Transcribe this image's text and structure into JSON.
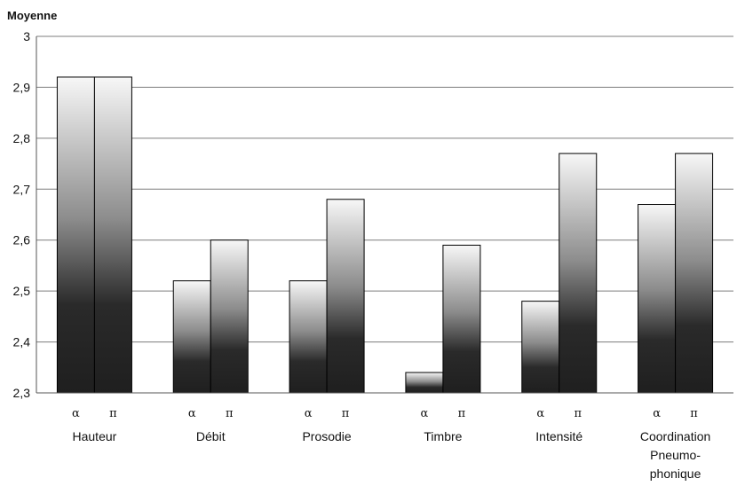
{
  "chart_data": {
    "type": "bar",
    "title": "Moyenne",
    "xlabel": "",
    "ylabel": "",
    "ylim": [
      2.3,
      3.0
    ],
    "y_ticks": [
      "2,3",
      "2,4",
      "2,5",
      "2,6",
      "2,7",
      "2,8",
      "2,9",
      "3"
    ],
    "y_tick_values": [
      2.3,
      2.4,
      2.5,
      2.6,
      2.7,
      2.8,
      2.9,
      3.0
    ],
    "grid": true,
    "categories": [
      {
        "name_lines": [
          "Hauteur"
        ],
        "bars": [
          {
            "symbol": "α",
            "value": 2.92
          },
          {
            "symbol": "π",
            "value": 2.92
          }
        ]
      },
      {
        "name_lines": [
          "Débit"
        ],
        "bars": [
          {
            "symbol": "α",
            "value": 2.52
          },
          {
            "symbol": "π",
            "value": 2.6
          }
        ]
      },
      {
        "name_lines": [
          "Prosodie"
        ],
        "bars": [
          {
            "symbol": "α",
            "value": 2.52
          },
          {
            "symbol": "π",
            "value": 2.68
          }
        ]
      },
      {
        "name_lines": [
          "Timbre"
        ],
        "bars": [
          {
            "symbol": "α",
            "value": 2.34
          },
          {
            "symbol": "π",
            "value": 2.59
          }
        ]
      },
      {
        "name_lines": [
          "Intensité"
        ],
        "bars": [
          {
            "symbol": "α",
            "value": 2.48
          },
          {
            "symbol": "π",
            "value": 2.77
          }
        ]
      },
      {
        "name_lines": [
          "Coordination",
          "Pneumo-",
          "phonique"
        ],
        "bars": [
          {
            "symbol": "α",
            "value": 2.67
          },
          {
            "symbol": "π",
            "value": 2.77
          }
        ]
      }
    ],
    "colors": {
      "bar_top": "#f7f7f7",
      "bar_bottom": "#1f1f1f",
      "outline": "#000000",
      "grid": "#7d7d7d",
      "axis": "#555555",
      "background": "#ffffff"
    }
  }
}
